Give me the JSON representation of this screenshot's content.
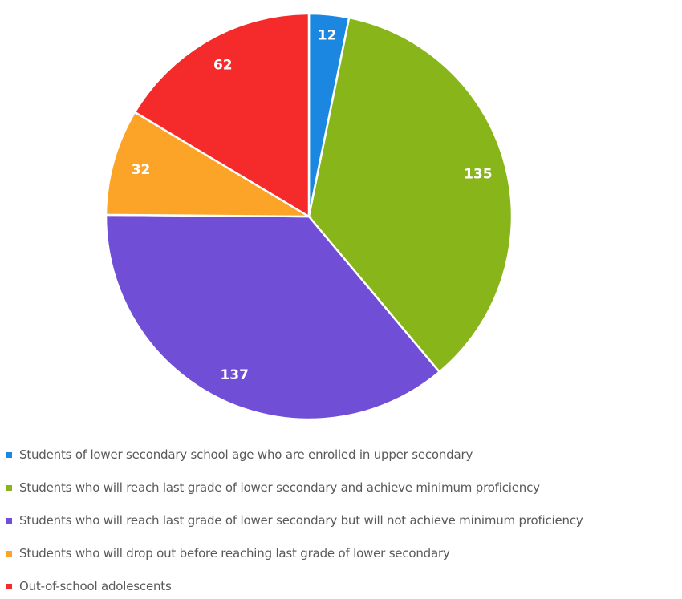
{
  "chart_data": {
    "type": "pie",
    "title": "",
    "start_angle": "top, clockwise",
    "legend_position": "bottom",
    "slices": [
      {
        "name": "Students of lower secondary school age who are enrolled in upper secondary",
        "value": 12,
        "color": "#1b87e0"
      },
      {
        "name": "Students who will reach last grade of lower secondary and achieve minimum proficiency",
        "value": 135,
        "color": "#88b51a"
      },
      {
        "name": "Students who will reach last grade of lower secondary but will not achieve minimum proficiency",
        "value": 137,
        "color": "#714ed6"
      },
      {
        "name": "Students who will drop out before reaching last grade of lower secondary",
        "value": 32,
        "color": "#fba428"
      },
      {
        "name": "Out-of-school adolescents",
        "value": 62,
        "color": "#f52b2b"
      }
    ]
  }
}
